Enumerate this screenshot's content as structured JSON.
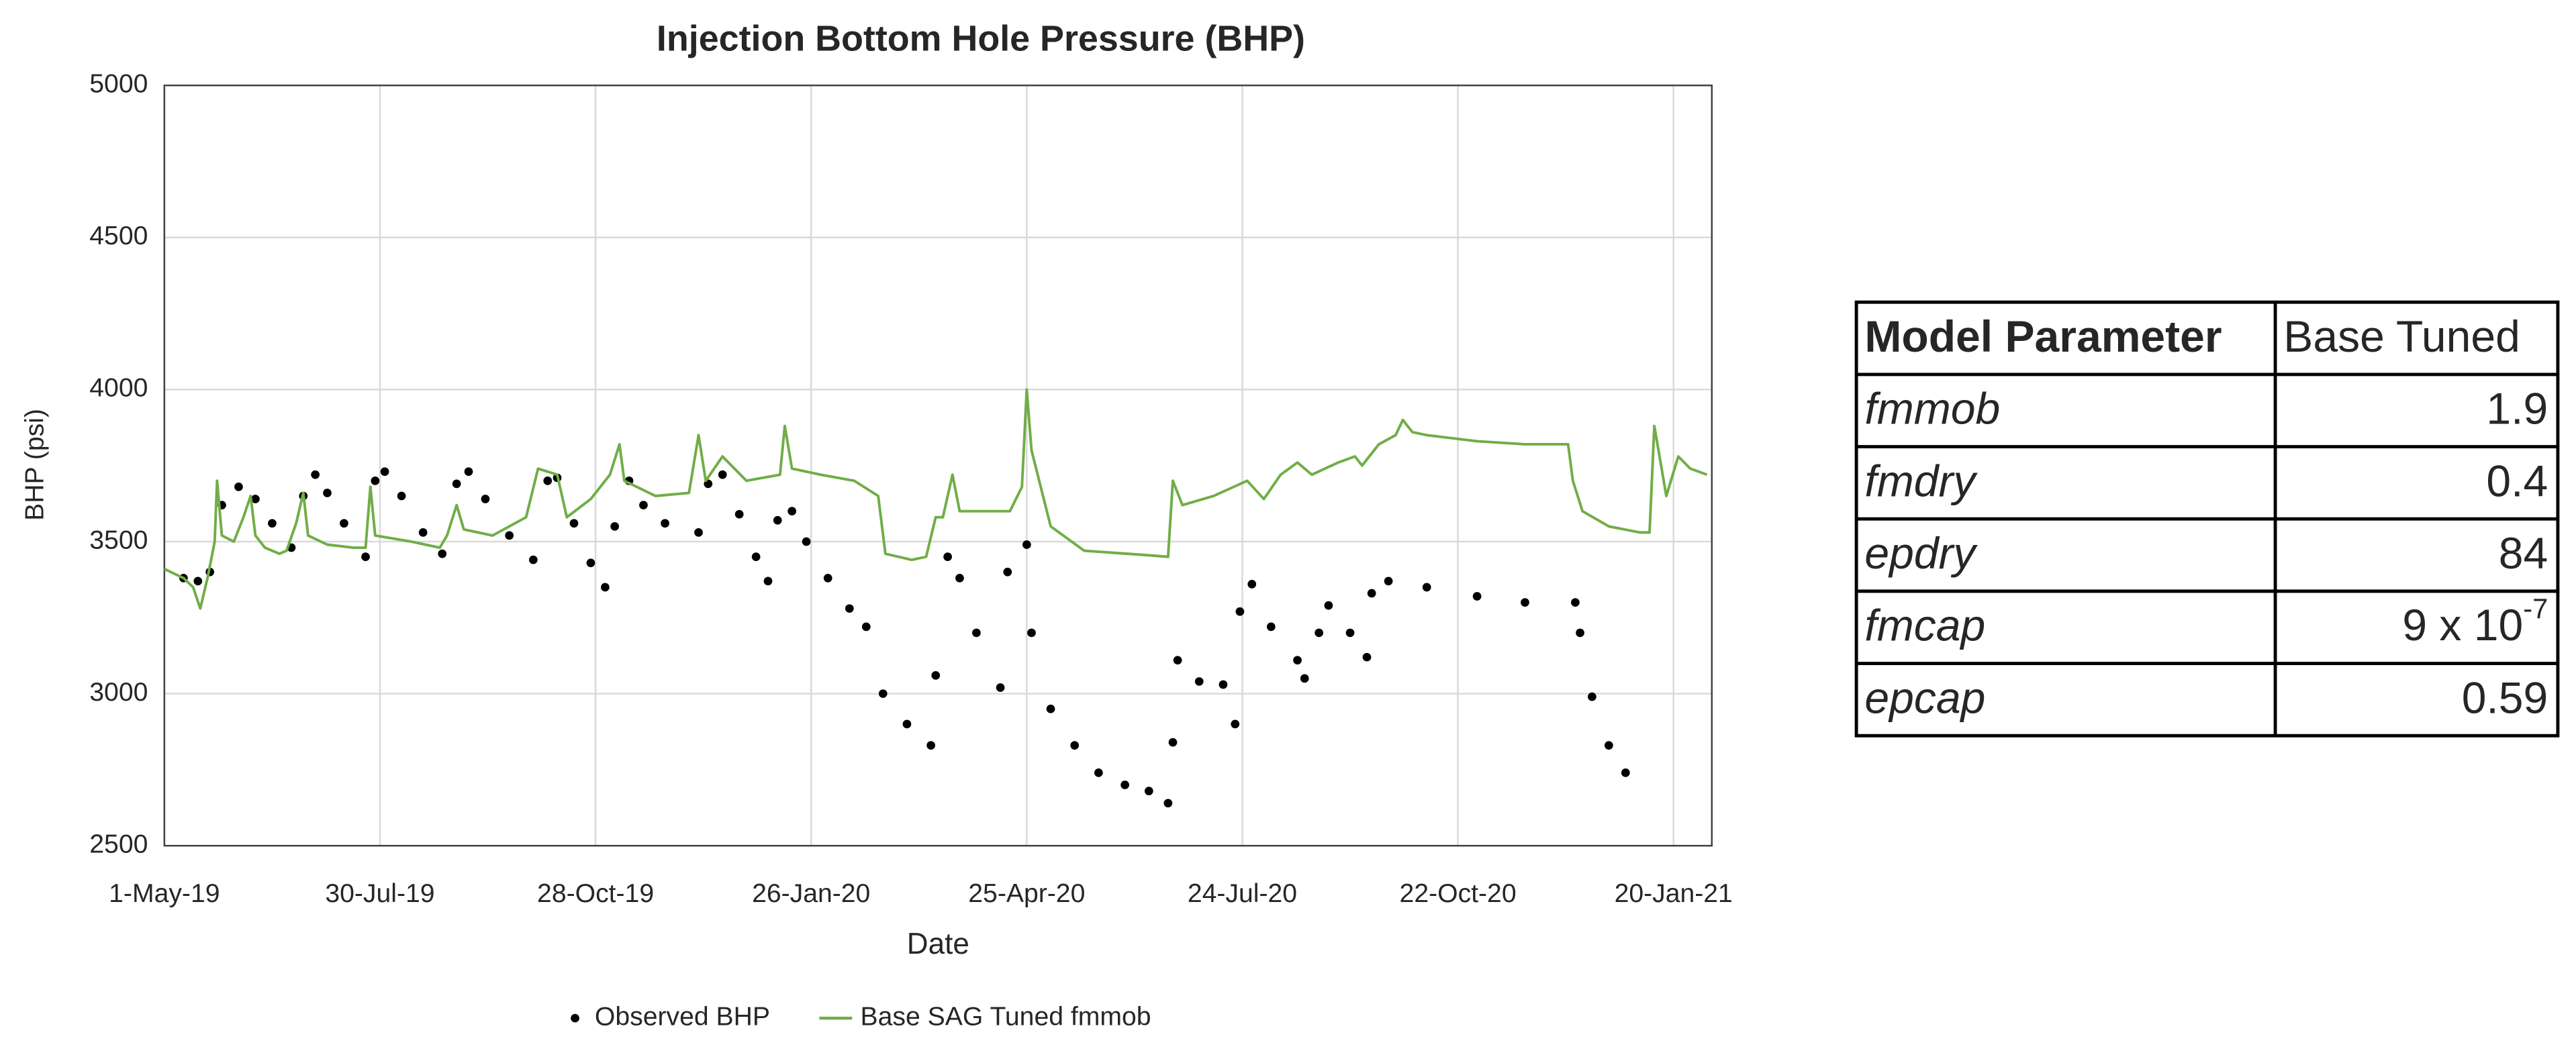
{
  "chart_data": {
    "type": "line",
    "title": "Injection Bottom Hole Pressure (BHP)",
    "x_label": "Date",
    "y_label": "BHP (psi)",
    "xlim": [
      "2019-05-01",
      "2021-02-05"
    ],
    "xticks": [
      {
        "value": "2019-05-01",
        "label": "1-May-19"
      },
      {
        "value": "2019-07-30",
        "label": "30-Jul-19"
      },
      {
        "value": "2019-10-28",
        "label": "28-Oct-19"
      },
      {
        "value": "2020-01-26",
        "label": "26-Jan-20"
      },
      {
        "value": "2020-04-25",
        "label": "25-Apr-20"
      },
      {
        "value": "2020-07-24",
        "label": "24-Jul-20"
      },
      {
        "value": "2020-10-22",
        "label": "22-Oct-20"
      },
      {
        "value": "2021-01-20",
        "label": "20-Jan-21"
      }
    ],
    "ylim": [
      2500,
      5000
    ],
    "yticks": [
      2500,
      3000,
      3500,
      4000,
      4500,
      5000
    ],
    "grid": true,
    "legend": "bottom",
    "series": [
      {
        "name": "Observed BHP",
        "color": "#000000",
        "mode": "markers",
        "x": [
          "2019-05-09",
          "2019-05-15",
          "2019-05-20",
          "2019-05-25",
          "2019-06-01",
          "2019-06-08",
          "2019-06-15",
          "2019-06-23",
          "2019-06-28",
          "2019-07-03",
          "2019-07-08",
          "2019-07-15",
          "2019-07-24",
          "2019-07-28",
          "2019-08-01",
          "2019-08-08",
          "2019-08-17",
          "2019-08-25",
          "2019-08-31",
          "2019-09-05",
          "2019-09-12",
          "2019-09-22",
          "2019-10-02",
          "2019-10-08",
          "2019-10-12",
          "2019-10-19",
          "2019-10-26",
          "2019-11-01",
          "2019-11-05",
          "2019-11-11",
          "2019-11-17",
          "2019-11-26",
          "2019-12-10",
          "2019-12-14",
          "2019-12-20",
          "2019-12-27",
          "2020-01-03",
          "2020-01-08",
          "2020-01-12",
          "2020-01-18",
          "2020-01-24",
          "2020-02-02",
          "2020-02-11",
          "2020-02-18",
          "2020-02-25",
          "2020-03-06",
          "2020-03-16",
          "2020-03-18",
          "2020-03-23",
          "2020-03-28",
          "2020-04-04",
          "2020-04-14",
          "2020-04-17",
          "2020-04-25",
          "2020-04-27",
          "2020-05-05",
          "2020-05-15",
          "2020-05-25",
          "2020-06-05",
          "2020-06-15",
          "2020-06-23",
          "2020-06-25",
          "2020-06-27",
          "2020-07-06",
          "2020-07-16",
          "2020-07-21",
          "2020-07-23",
          "2020-07-28",
          "2020-08-05",
          "2020-08-16",
          "2020-08-19",
          "2020-08-25",
          "2020-08-29",
          "2020-09-07",
          "2020-09-14",
          "2020-09-16",
          "2020-09-23",
          "2020-10-09",
          "2020-10-30",
          "2020-11-19",
          "2020-12-10",
          "2020-12-12",
          "2020-12-17",
          "2020-12-24",
          "2020-12-31"
        ],
        "values": [
          3380,
          3370,
          3400,
          3620,
          3680,
          3640,
          3560,
          3480,
          3650,
          3720,
          3660,
          3560,
          3450,
          3700,
          3730,
          3650,
          3530,
          3460,
          3690,
          3730,
          3640,
          3520,
          3440,
          3700,
          3710,
          3560,
          3430,
          3350,
          3550,
          3700,
          3620,
          3560,
          3530,
          3690,
          3720,
          3590,
          3450,
          3370,
          3570,
          3600,
          3500,
          3380,
          3280,
          3220,
          3000,
          2900,
          2830,
          3060,
          3450,
          3380,
          3200,
          3020,
          3400,
          3490,
          3200,
          2950,
          2830,
          2740,
          2700,
          2680,
          2640,
          2840,
          3110,
          3040,
          3030,
          2900,
          3270,
          3360,
          3220,
          3110,
          3050,
          3200,
          3290,
          3200,
          3120,
          3330,
          3370,
          3350,
          3320,
          3300,
          3300,
          3200,
          2990,
          2830,
          2740
        ]
      },
      {
        "name": "Base SAG Tuned fmmob",
        "color": "#70ad47",
        "mode": "lines",
        "x": [
          "2019-05-01",
          "2019-05-09",
          "2019-05-13",
          "2019-05-16",
          "2019-05-19",
          "2019-05-22",
          "2019-05-23",
          "2019-05-25",
          "2019-05-30",
          "2019-06-03",
          "2019-06-06",
          "2019-06-08",
          "2019-06-12",
          "2019-06-18",
          "2019-06-21",
          "2019-06-25",
          "2019-06-28",
          "2019-06-30",
          "2019-07-08",
          "2019-07-19",
          "2019-07-24",
          "2019-07-26",
          "2019-07-28",
          "2019-08-12",
          "2019-08-24",
          "2019-08-27",
          "2019-08-31",
          "2019-09-03",
          "2019-09-15",
          "2019-09-29",
          "2019-10-04",
          "2019-10-12",
          "2019-10-16",
          "2019-10-26",
          "2019-11-03",
          "2019-11-07",
          "2019-11-09",
          "2019-11-22",
          "2019-12-06",
          "2019-12-10",
          "2019-12-13",
          "2019-12-20",
          "2019-12-30",
          "2020-01-13",
          "2020-01-15",
          "2020-01-18",
          "2020-01-30",
          "2020-02-13",
          "2020-02-23",
          "2020-02-26",
          "2020-03-08",
          "2020-03-14",
          "2020-03-18",
          "2020-03-21",
          "2020-03-25",
          "2020-03-28",
          "2020-04-07",
          "2020-04-18",
          "2020-04-23",
          "2020-04-25",
          "2020-04-27",
          "2020-05-05",
          "2020-05-19",
          "2020-06-15",
          "2020-06-23",
          "2020-06-25",
          "2020-06-29",
          "2020-07-12",
          "2020-07-26",
          "2020-08-02",
          "2020-08-09",
          "2020-08-16",
          "2020-08-22",
          "2020-09-02",
          "2020-09-09",
          "2020-09-12",
          "2020-09-19",
          "2020-09-26",
          "2020-09-29",
          "2020-10-03",
          "2020-10-09",
          "2020-10-30",
          "2020-11-19",
          "2020-12-07",
          "2020-12-09",
          "2020-12-13",
          "2020-12-24",
          "2021-01-06",
          "2021-01-10",
          "2021-01-12",
          "2021-01-17",
          "2021-01-22",
          "2021-01-27",
          "2021-02-03"
        ],
        "values": [
          3410,
          3380,
          3350,
          3280,
          3380,
          3500,
          3700,
          3520,
          3500,
          3580,
          3650,
          3520,
          3480,
          3460,
          3470,
          3560,
          3660,
          3520,
          3490,
          3480,
          3480,
          3680,
          3520,
          3500,
          3480,
          3520,
          3620,
          3540,
          3520,
          3580,
          3740,
          3720,
          3580,
          3640,
          3720,
          3820,
          3700,
          3650,
          3660,
          3850,
          3700,
          3780,
          3700,
          3720,
          3880,
          3740,
          3720,
          3700,
          3650,
          3460,
          3440,
          3450,
          3580,
          3580,
          3720,
          3600,
          3600,
          3600,
          3680,
          4000,
          3800,
          3550,
          3470,
          3455,
          3450,
          3700,
          3620,
          3650,
          3700,
          3640,
          3720,
          3760,
          3720,
          3760,
          3780,
          3750,
          3820,
          3850,
          3900,
          3860,
          3850,
          3830,
          3820,
          3820,
          3700,
          3600,
          3550,
          3530,
          3530,
          3880,
          3650,
          3780,
          3740,
          3720
        ]
      }
    ]
  },
  "table": {
    "header": [
      "Model Parameter",
      "Base Tuned"
    ],
    "rows": [
      [
        "fmmob",
        1.9
      ],
      [
        "fmdry",
        0.4
      ],
      [
        "epdry",
        84
      ],
      [
        "fmcap",
        {
          "text": "9 x 10",
          "sup": "-7"
        }
      ],
      [
        "epcap",
        0.59
      ]
    ]
  }
}
